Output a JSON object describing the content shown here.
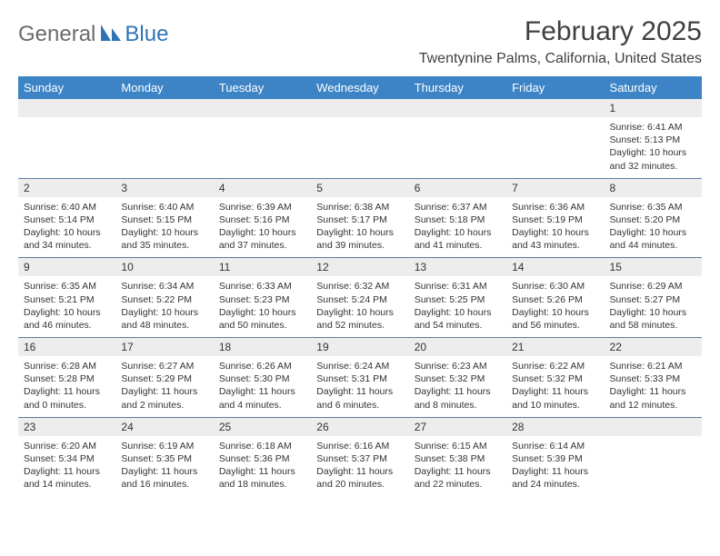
{
  "logo": {
    "part1": "General",
    "part2": "Blue"
  },
  "title": "February 2025",
  "location": "Twentynine Palms, California, United States",
  "header_bg": "#3d84c6",
  "header_text_color": "#ffffff",
  "row_divider_color": "#5b7ca0",
  "daynum_bg": "#ededed",
  "text_color": "#333333",
  "weekdays": [
    "Sunday",
    "Monday",
    "Tuesday",
    "Wednesday",
    "Thursday",
    "Friday",
    "Saturday"
  ],
  "weeks": [
    [
      {
        "n": "",
        "sr": "",
        "ss": "",
        "dl": ""
      },
      {
        "n": "",
        "sr": "",
        "ss": "",
        "dl": ""
      },
      {
        "n": "",
        "sr": "",
        "ss": "",
        "dl": ""
      },
      {
        "n": "",
        "sr": "",
        "ss": "",
        "dl": ""
      },
      {
        "n": "",
        "sr": "",
        "ss": "",
        "dl": ""
      },
      {
        "n": "",
        "sr": "",
        "ss": "",
        "dl": ""
      },
      {
        "n": "1",
        "sr": "Sunrise: 6:41 AM",
        "ss": "Sunset: 5:13 PM",
        "dl": "Daylight: 10 hours and 32 minutes."
      }
    ],
    [
      {
        "n": "2",
        "sr": "Sunrise: 6:40 AM",
        "ss": "Sunset: 5:14 PM",
        "dl": "Daylight: 10 hours and 34 minutes."
      },
      {
        "n": "3",
        "sr": "Sunrise: 6:40 AM",
        "ss": "Sunset: 5:15 PM",
        "dl": "Daylight: 10 hours and 35 minutes."
      },
      {
        "n": "4",
        "sr": "Sunrise: 6:39 AM",
        "ss": "Sunset: 5:16 PM",
        "dl": "Daylight: 10 hours and 37 minutes."
      },
      {
        "n": "5",
        "sr": "Sunrise: 6:38 AM",
        "ss": "Sunset: 5:17 PM",
        "dl": "Daylight: 10 hours and 39 minutes."
      },
      {
        "n": "6",
        "sr": "Sunrise: 6:37 AM",
        "ss": "Sunset: 5:18 PM",
        "dl": "Daylight: 10 hours and 41 minutes."
      },
      {
        "n": "7",
        "sr": "Sunrise: 6:36 AM",
        "ss": "Sunset: 5:19 PM",
        "dl": "Daylight: 10 hours and 43 minutes."
      },
      {
        "n": "8",
        "sr": "Sunrise: 6:35 AM",
        "ss": "Sunset: 5:20 PM",
        "dl": "Daylight: 10 hours and 44 minutes."
      }
    ],
    [
      {
        "n": "9",
        "sr": "Sunrise: 6:35 AM",
        "ss": "Sunset: 5:21 PM",
        "dl": "Daylight: 10 hours and 46 minutes."
      },
      {
        "n": "10",
        "sr": "Sunrise: 6:34 AM",
        "ss": "Sunset: 5:22 PM",
        "dl": "Daylight: 10 hours and 48 minutes."
      },
      {
        "n": "11",
        "sr": "Sunrise: 6:33 AM",
        "ss": "Sunset: 5:23 PM",
        "dl": "Daylight: 10 hours and 50 minutes."
      },
      {
        "n": "12",
        "sr": "Sunrise: 6:32 AM",
        "ss": "Sunset: 5:24 PM",
        "dl": "Daylight: 10 hours and 52 minutes."
      },
      {
        "n": "13",
        "sr": "Sunrise: 6:31 AM",
        "ss": "Sunset: 5:25 PM",
        "dl": "Daylight: 10 hours and 54 minutes."
      },
      {
        "n": "14",
        "sr": "Sunrise: 6:30 AM",
        "ss": "Sunset: 5:26 PM",
        "dl": "Daylight: 10 hours and 56 minutes."
      },
      {
        "n": "15",
        "sr": "Sunrise: 6:29 AM",
        "ss": "Sunset: 5:27 PM",
        "dl": "Daylight: 10 hours and 58 minutes."
      }
    ],
    [
      {
        "n": "16",
        "sr": "Sunrise: 6:28 AM",
        "ss": "Sunset: 5:28 PM",
        "dl": "Daylight: 11 hours and 0 minutes."
      },
      {
        "n": "17",
        "sr": "Sunrise: 6:27 AM",
        "ss": "Sunset: 5:29 PM",
        "dl": "Daylight: 11 hours and 2 minutes."
      },
      {
        "n": "18",
        "sr": "Sunrise: 6:26 AM",
        "ss": "Sunset: 5:30 PM",
        "dl": "Daylight: 11 hours and 4 minutes."
      },
      {
        "n": "19",
        "sr": "Sunrise: 6:24 AM",
        "ss": "Sunset: 5:31 PM",
        "dl": "Daylight: 11 hours and 6 minutes."
      },
      {
        "n": "20",
        "sr": "Sunrise: 6:23 AM",
        "ss": "Sunset: 5:32 PM",
        "dl": "Daylight: 11 hours and 8 minutes."
      },
      {
        "n": "21",
        "sr": "Sunrise: 6:22 AM",
        "ss": "Sunset: 5:32 PM",
        "dl": "Daylight: 11 hours and 10 minutes."
      },
      {
        "n": "22",
        "sr": "Sunrise: 6:21 AM",
        "ss": "Sunset: 5:33 PM",
        "dl": "Daylight: 11 hours and 12 minutes."
      }
    ],
    [
      {
        "n": "23",
        "sr": "Sunrise: 6:20 AM",
        "ss": "Sunset: 5:34 PM",
        "dl": "Daylight: 11 hours and 14 minutes."
      },
      {
        "n": "24",
        "sr": "Sunrise: 6:19 AM",
        "ss": "Sunset: 5:35 PM",
        "dl": "Daylight: 11 hours and 16 minutes."
      },
      {
        "n": "25",
        "sr": "Sunrise: 6:18 AM",
        "ss": "Sunset: 5:36 PM",
        "dl": "Daylight: 11 hours and 18 minutes."
      },
      {
        "n": "26",
        "sr": "Sunrise: 6:16 AM",
        "ss": "Sunset: 5:37 PM",
        "dl": "Daylight: 11 hours and 20 minutes."
      },
      {
        "n": "27",
        "sr": "Sunrise: 6:15 AM",
        "ss": "Sunset: 5:38 PM",
        "dl": "Daylight: 11 hours and 22 minutes."
      },
      {
        "n": "28",
        "sr": "Sunrise: 6:14 AM",
        "ss": "Sunset: 5:39 PM",
        "dl": "Daylight: 11 hours and 24 minutes."
      },
      {
        "n": "",
        "sr": "",
        "ss": "",
        "dl": ""
      }
    ]
  ]
}
